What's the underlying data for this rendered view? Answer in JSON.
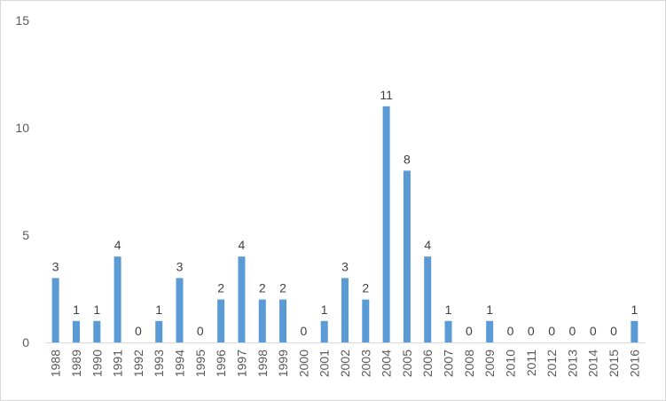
{
  "chart_data": {
    "type": "bar",
    "categories": [
      "1988",
      "1989",
      "1990",
      "1991",
      "1992",
      "1993",
      "1994",
      "1995",
      "1996",
      "1997",
      "1998",
      "1999",
      "2000",
      "2001",
      "2002",
      "2003",
      "2004",
      "2005",
      "2006",
      "2007",
      "2008",
      "2009",
      "2010",
      "2011",
      "2012",
      "2013",
      "2014",
      "2015",
      "2016"
    ],
    "values": [
      3,
      1,
      1,
      4,
      0,
      1,
      3,
      0,
      2,
      4,
      2,
      2,
      0,
      1,
      3,
      2,
      11,
      8,
      4,
      1,
      0,
      1,
      0,
      0,
      0,
      0,
      0,
      0,
      1
    ],
    "title": "",
    "xlabel": "",
    "ylabel": "",
    "ylim": [
      0,
      15
    ],
    "yticks": [
      0,
      5,
      10,
      15
    ],
    "grid": false,
    "legend": "none",
    "bar_color": "#5b9bd5",
    "axis_color": "#d9d9d9"
  }
}
